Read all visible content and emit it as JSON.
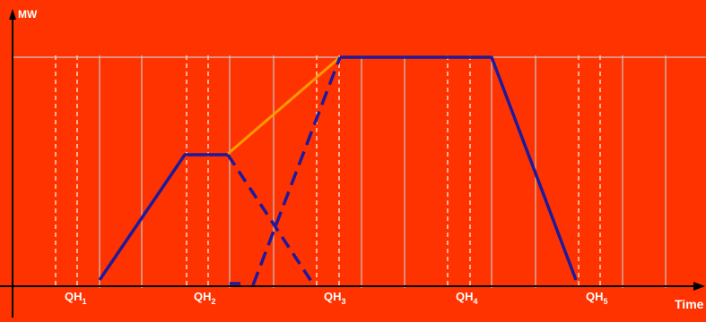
{
  "diagram": {
    "y_axis_label": "MW",
    "x_axis_label": "Time",
    "quarter_hour_labels": [
      {
        "base": "QH",
        "sub": "1"
      },
      {
        "base": "QH",
        "sub": "2"
      },
      {
        "base": "QH",
        "sub": "3"
      },
      {
        "base": "QH",
        "sub": "4"
      },
      {
        "base": "QH",
        "sub": "5"
      }
    ],
    "colors": {
      "background": "#ff3300",
      "profile_line": "#1f1a9a",
      "transition_line": "#ff9900",
      "grid_solid": "#c9c9c9",
      "grid_dashed": "#ffffff",
      "axis": "#000000",
      "labels": "#ffffff"
    }
  }
}
